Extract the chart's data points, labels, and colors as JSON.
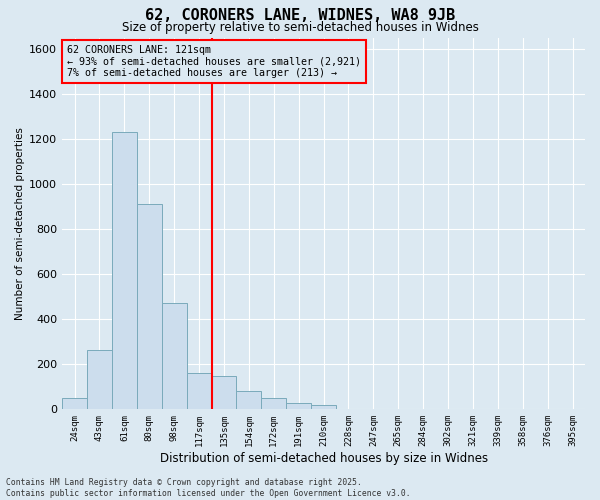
{
  "title": "62, CORONERS LANE, WIDNES, WA8 9JB",
  "subtitle": "Size of property relative to semi-detached houses in Widnes",
  "xlabel": "Distribution of semi-detached houses by size in Widnes",
  "ylabel": "Number of semi-detached properties",
  "bin_labels": [
    "24sqm",
    "43sqm",
    "61sqm",
    "80sqm",
    "98sqm",
    "117sqm",
    "135sqm",
    "154sqm",
    "172sqm",
    "191sqm",
    "210sqm",
    "228sqm",
    "247sqm",
    "265sqm",
    "284sqm",
    "302sqm",
    "321sqm",
    "339sqm",
    "358sqm",
    "376sqm",
    "395sqm"
  ],
  "bar_values": [
    50,
    265,
    1230,
    910,
    470,
    160,
    150,
    80,
    50,
    30,
    20,
    0,
    0,
    0,
    0,
    0,
    0,
    0,
    0,
    0,
    0
  ],
  "bar_color": "#ccdded",
  "bar_edge_color": "#7aaabb",
  "red_line_index": 6,
  "annotation_text": "62 CORONERS LANE: 121sqm\n← 93% of semi-detached houses are smaller (2,921)\n7% of semi-detached houses are larger (213) →",
  "ylim": [
    0,
    1650
  ],
  "yticks": [
    0,
    200,
    400,
    600,
    800,
    1000,
    1200,
    1400,
    1600
  ],
  "bg_color": "#dce9f2",
  "grid_color": "#ffffff",
  "footer": "Contains HM Land Registry data © Crown copyright and database right 2025.\nContains public sector information licensed under the Open Government Licence v3.0."
}
